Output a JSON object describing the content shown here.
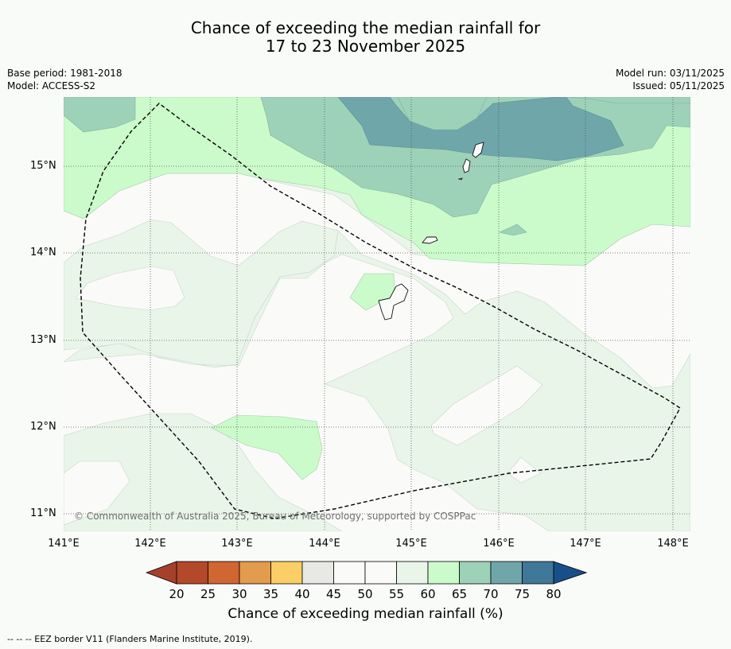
{
  "title": {
    "line1": "Chance of exceeding the median rainfall for",
    "line2": "17 to 23 November 2025"
  },
  "meta": {
    "base_period": "Base period: 1981-2018",
    "model": "Model: ACCESS-S2",
    "model_run": "Model run: 03/11/2025",
    "issued": "Issued: 05/11/2025"
  },
  "map": {
    "lat_labels": [
      "15°N",
      "14°N",
      "13°N",
      "12°N",
      "11°N"
    ],
    "lon_labels": [
      "141°E",
      "142°E",
      "143°E",
      "144°E",
      "145°E",
      "146°E",
      "147°E",
      "148°E"
    ],
    "copyright": "© Commonwealth of Australia 2025, Bureau of Meteorology, supported by COSPPac"
  },
  "colorbar": {
    "ticks": [
      "20",
      "25",
      "30",
      "35",
      "40",
      "45",
      "50",
      "55",
      "60",
      "65",
      "70",
      "75",
      "80"
    ],
    "colors": [
      "#a5412a",
      "#b4482a",
      "#d06632",
      "#e39b4d",
      "#fbcf66",
      "#e8e9e5",
      "#fafbf9",
      "#fafbf9",
      "#e9f5e9",
      "#cbfbcb",
      "#9dd2b9",
      "#6fa6aa",
      "#3f7898",
      "#174f8a"
    ],
    "label": "Chance of exceeding median rainfall (%)"
  },
  "footnote": "-- -- -- EEZ border V11 (Flanders Marine Institute, 2019)."
}
